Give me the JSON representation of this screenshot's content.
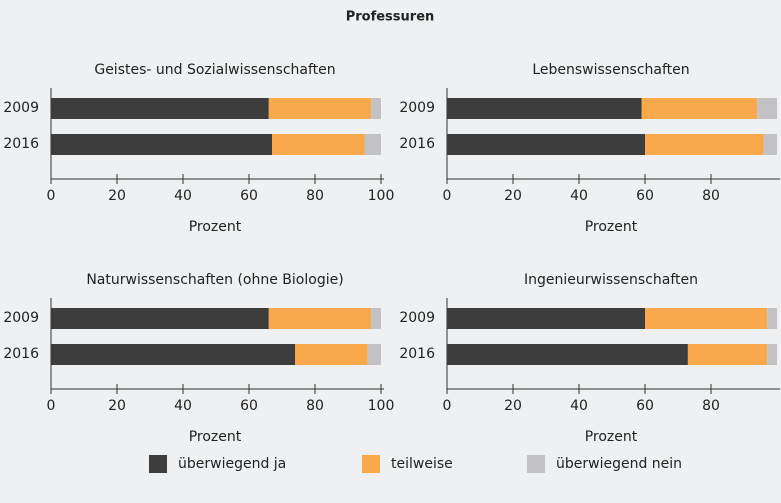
{
  "title": "Professuren",
  "chart_data": [
    {
      "type": "bar",
      "orientation": "horizontal",
      "stacked": true,
      "title": "Geistes- und Sozialwissenschaften",
      "categories": [
        "2009",
        "2016"
      ],
      "series": [
        {
          "name": "überwiegend ja",
          "color": "#3d3d3d",
          "values": [
            66,
            67
          ]
        },
        {
          "name": "teilweise",
          "color": "#f9a94b",
          "values": [
            31,
            28
          ]
        },
        {
          "name": "überwiegend nein",
          "color": "#c2c2c4",
          "values": [
            3,
            5
          ]
        }
      ],
      "xlabel": "Prozent",
      "xlim": [
        0,
        100
      ],
      "xticks": [
        0,
        20,
        40,
        60,
        80,
        100
      ]
    },
    {
      "type": "bar",
      "orientation": "horizontal",
      "stacked": true,
      "title": "Lebenswissenschaften",
      "categories": [
        "2009",
        "2016"
      ],
      "series": [
        {
          "name": "überwiegend ja",
          "color": "#3d3d3d",
          "values": [
            59,
            60
          ]
        },
        {
          "name": "teilweise",
          "color": "#f9a94b",
          "values": [
            35,
            36
          ]
        },
        {
          "name": "überwiegend nein",
          "color": "#c2c2c4",
          "values": [
            6,
            4
          ]
        }
      ],
      "xlabel": "Prozent",
      "xlim": [
        0,
        100
      ],
      "xticks": [
        0,
        20,
        40,
        60,
        80
      ]
    },
    {
      "type": "bar",
      "orientation": "horizontal",
      "stacked": true,
      "title": "Naturwissenschaften (ohne Biologie)",
      "categories": [
        "2009",
        "2016"
      ],
      "series": [
        {
          "name": "überwiegend ja",
          "color": "#3d3d3d",
          "values": [
            66,
            74
          ]
        },
        {
          "name": "teilweise",
          "color": "#f9a94b",
          "values": [
            31,
            22
          ]
        },
        {
          "name": "überwiegend nein",
          "color": "#c2c2c4",
          "values": [
            3,
            4
          ]
        }
      ],
      "xlabel": "Prozent",
      "xlim": [
        0,
        100
      ],
      "xticks": [
        0,
        20,
        40,
        60,
        80,
        100
      ]
    },
    {
      "type": "bar",
      "orientation": "horizontal",
      "stacked": true,
      "title": "Ingenieurwissenschaften",
      "categories": [
        "2009",
        "2016"
      ],
      "series": [
        {
          "name": "überwiegend ja",
          "color": "#3d3d3d",
          "values": [
            60,
            73
          ]
        },
        {
          "name": "teilweise",
          "color": "#f9a94b",
          "values": [
            37,
            24
          ]
        },
        {
          "name": "überwiegend nein",
          "color": "#c2c2c4",
          "values": [
            3,
            3
          ]
        }
      ],
      "xlabel": "Prozent",
      "xlim": [
        0,
        100
      ],
      "xticks": [
        0,
        20,
        40,
        60,
        80
      ]
    }
  ]
}
